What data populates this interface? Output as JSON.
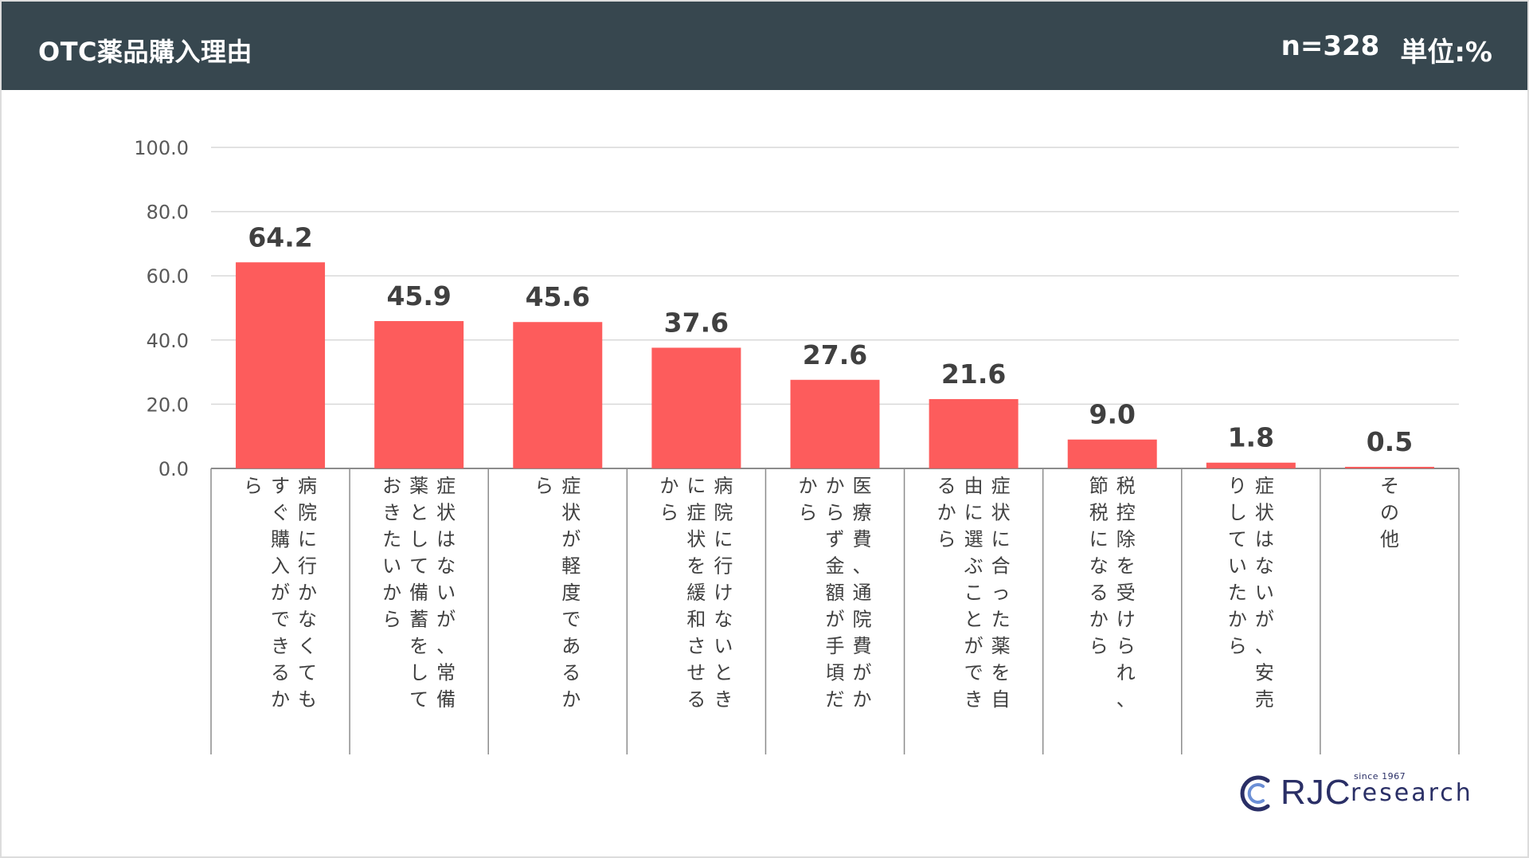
{
  "header": {
    "title": "OTC薬品購入理由",
    "sample": "n=328",
    "unit": "単位:%",
    "background": "#37474f"
  },
  "chart_data": {
    "type": "bar",
    "categories": [
      "病院に行かなくてもすぐ購入ができるから",
      "症状はないが、常備薬として備蓄をしておきたいから",
      "症状が軽度であるから",
      "病院に行けないときに症状を緩和させるから",
      "医療費、通院費がかからず金額が手頃だから",
      "症状に合った薬を自由に選ぶことができるから",
      "税控除を受けられ、節税になるから",
      "症状はないが、安売りしていたから",
      "その他"
    ],
    "values": [
      64.2,
      45.9,
      45.6,
      37.6,
      27.6,
      21.6,
      9.0,
      1.8,
      0.5
    ],
    "ylim": [
      0,
      100
    ],
    "yticks": [
      "100.0",
      "80.0",
      "60.0",
      "40.0",
      "20.0",
      "0.0"
    ],
    "grid": true,
    "bar_color": "#fd5c5c"
  },
  "logo": {
    "since": "since 1967",
    "rjc": "RJC",
    "research": "research",
    "color": "#2a2f66"
  }
}
